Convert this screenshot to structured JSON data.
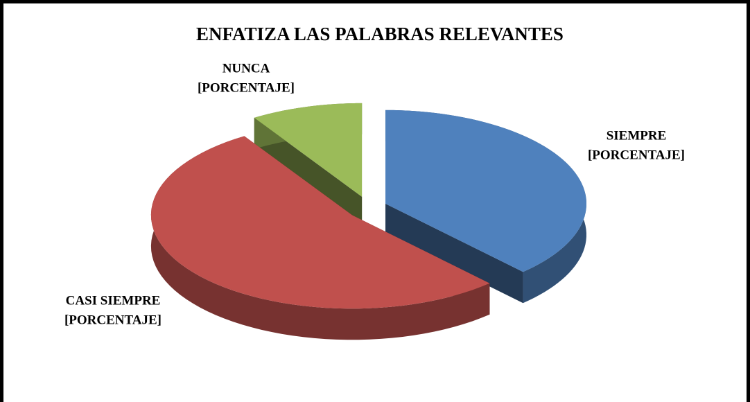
{
  "chart_data": {
    "type": "pie",
    "title": "ENFATIZA LAS PALABRAS RELEVANTES",
    "categories": [
      "SIEMPRE",
      "CASI SIEMPRE",
      "NUNCA"
    ],
    "values": [
      38,
      53,
      9
    ],
    "value_labels": [
      "[PORCENTAJE]",
      "[PORCENTAJE]",
      "[PORCENTAJE]"
    ],
    "colors": [
      "#4f81bd",
      "#c0504d",
      "#9bbb59"
    ]
  }
}
